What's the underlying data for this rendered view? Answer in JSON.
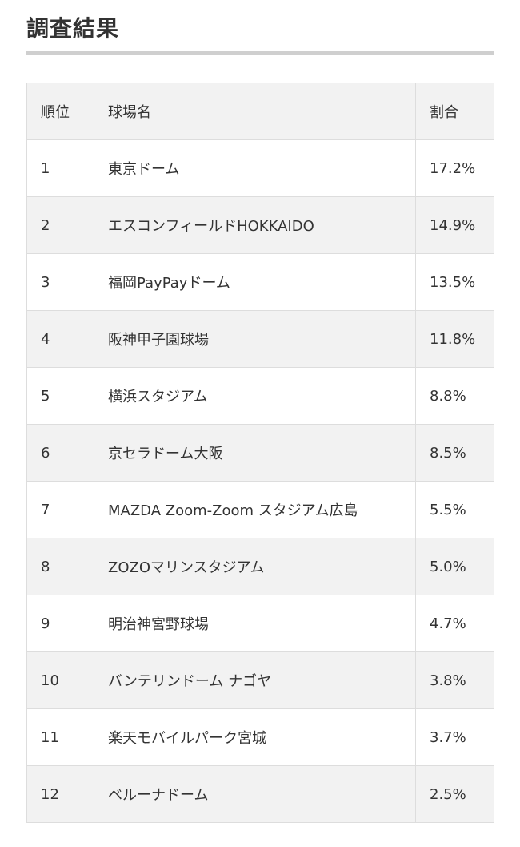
{
  "section": {
    "title": "調査結果"
  },
  "table": {
    "headers": {
      "rank": "順位",
      "name": "球場名",
      "percent": "割合"
    },
    "rows": [
      {
        "rank": "1",
        "name": "東京ドーム",
        "percent": "17.2%"
      },
      {
        "rank": "2",
        "name": "エスコンフィールドHOKKAIDO",
        "percent": "14.9%"
      },
      {
        "rank": "3",
        "name": "福岡PayPayドーム",
        "percent": "13.5%"
      },
      {
        "rank": "4",
        "name": "阪神甲子園球場",
        "percent": "11.8%"
      },
      {
        "rank": "5",
        "name": "横浜スタジアム",
        "percent": "8.8%"
      },
      {
        "rank": "6",
        "name": "京セラドーム大阪",
        "percent": "8.5%"
      },
      {
        "rank": "7",
        "name": "MAZDA Zoom-Zoom スタジアム広島",
        "percent": "5.5%"
      },
      {
        "rank": "8",
        "name": "ZOZOマリンスタジアム",
        "percent": "5.0%"
      },
      {
        "rank": "9",
        "name": "明治神宮野球場",
        "percent": "4.7%"
      },
      {
        "rank": "10",
        "name": "バンテリンドーム ナゴヤ",
        "percent": "3.8%"
      },
      {
        "rank": "11",
        "name": "楽天モバイルパーク宮城",
        "percent": "3.7%"
      },
      {
        "rank": "12",
        "name": "ベルーナドーム",
        "percent": "2.5%"
      }
    ]
  }
}
